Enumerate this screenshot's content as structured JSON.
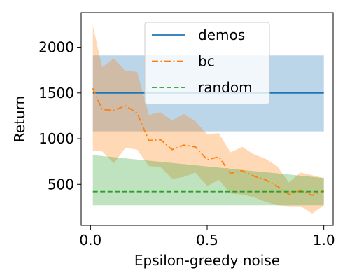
{
  "chart_data": {
    "type": "line",
    "title": "",
    "xlabel": "Epsilon-greedy noise",
    "ylabel": "Return",
    "xlim": [
      -0.04,
      1.04
    ],
    "ylim": [
      50,
      2380
    ],
    "xticks": [
      0.0,
      0.5,
      1.0
    ],
    "xtick_labels": [
      "0.0",
      "0.5",
      "1.0"
    ],
    "yticks": [
      500,
      1000,
      1500,
      2000
    ],
    "ytick_labels": [
      "500",
      "1000",
      "1500",
      "2000"
    ],
    "grid": false,
    "legend_position": "top-center",
    "series": [
      {
        "name": "demos",
        "style": "solid",
        "color": "#1f77b4",
        "x": [
          0.01,
          1.0
        ],
        "values": [
          1500,
          1500
        ],
        "band_low": [
          1080,
          1080
        ],
        "band_high": [
          1910,
          1910
        ]
      },
      {
        "name": "bc",
        "style": "dashdot",
        "color": "#ff7f0e",
        "x": [
          0.01,
          0.05,
          0.1,
          0.15,
          0.2,
          0.25,
          0.3,
          0.35,
          0.4,
          0.45,
          0.5,
          0.55,
          0.6,
          0.65,
          0.7,
          0.75,
          0.8,
          0.85,
          0.9,
          0.95,
          1.0
        ],
        "values": [
          1550,
          1320,
          1310,
          1360,
          1280,
          980,
          990,
          880,
          930,
          910,
          770,
          800,
          620,
          650,
          590,
          550,
          480,
          390,
          430,
          380,
          430
        ],
        "band_low": [
          870,
          860,
          730,
          900,
          880,
          700,
          690,
          560,
          580,
          630,
          480,
          550,
          400,
          390,
          360,
          310,
          270,
          260,
          260,
          180,
          270
        ],
        "band_high": [
          2240,
          1780,
          1880,
          1740,
          1730,
          1260,
          1290,
          1200,
          1270,
          1190,
          1050,
          1060,
          850,
          910,
          830,
          780,
          700,
          520,
          630,
          600,
          570
        ]
      },
      {
        "name": "random",
        "style": "dashed",
        "color": "#2ca02c",
        "x": [
          0.01,
          1.0
        ],
        "values": [
          420,
          420
        ],
        "band_low": [
          270,
          270
        ],
        "band_high": [
          820,
          570
        ]
      }
    ]
  }
}
